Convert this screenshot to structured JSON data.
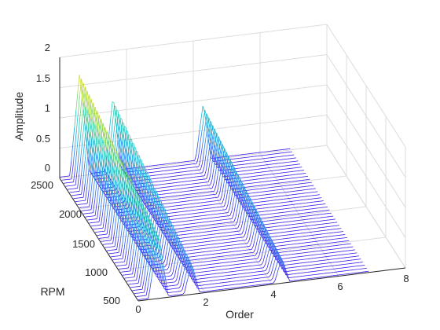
{
  "chart_data": {
    "type": "waterfall",
    "title": "",
    "xlabel": "Order",
    "ylabel": "RPM",
    "zlabel": "Amplitude",
    "xlim": [
      0,
      8
    ],
    "ylim": [
      500,
      2500
    ],
    "zlim": [
      0,
      2
    ],
    "xticks": [
      "0",
      "2",
      "4",
      "6",
      "8"
    ],
    "yticks": [
      "500",
      "1000",
      "1500",
      "2000",
      "2500"
    ],
    "zticks": [
      "0",
      "0.5",
      "1",
      "1.5",
      "2"
    ],
    "grid": true,
    "colormap": [
      "#3a0ce6",
      "#2f6ff0",
      "#18b0dc",
      "#28d3b6",
      "#b0d838",
      "#f5e61a"
    ],
    "rpm_traces": {
      "start": 500,
      "end": 2500,
      "step": 50
    },
    "order_range": [
      0,
      6.9
    ],
    "peaks": [
      {
        "order": 0.6,
        "width": 0.3,
        "amplitude_at_500": 1.08,
        "amplitude_at_2500": 1.72
      },
      {
        "order": 1.6,
        "width": 0.24,
        "amplitude_at_500": 0.52,
        "amplitude_at_2500": 1.28
      },
      {
        "order": 4.3,
        "width": 0.24,
        "amplitude_at_500": 0.42,
        "amplitude_at_2500": 0.95
      }
    ]
  }
}
